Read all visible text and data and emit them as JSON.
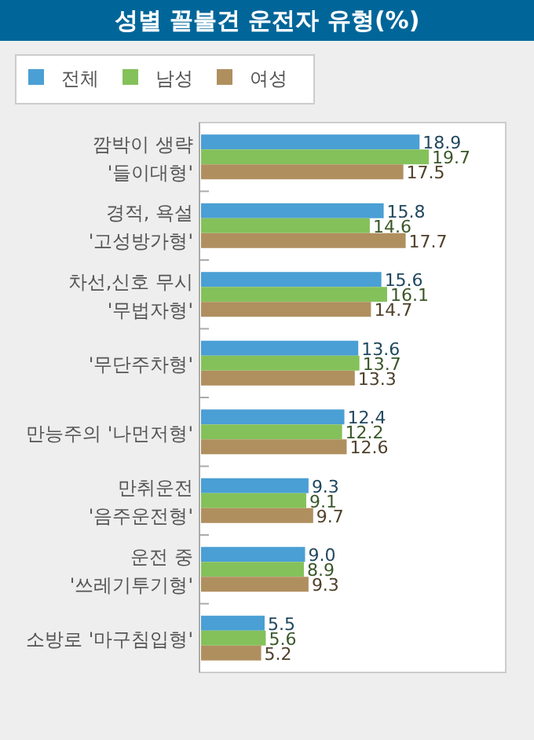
{
  "chart_data": {
    "type": "bar",
    "orientation": "horizontal",
    "title": "성별 꼴불견 운전자 유형(%)",
    "legend": "top left",
    "grid": false,
    "categories": [
      "깜박이 생략\n'들이대형'",
      "경적, 욕설\n'고성방가형'",
      "차선,신호 무시\n'무법자형'",
      "'무단주차형'",
      "만능주의 '나먼저형'",
      "만취운전\n'음주운전형'",
      "운전 중\n'쓰레기투기형'",
      "소방로 '마구침입형'"
    ],
    "series": [
      {
        "name": "전체",
        "color": "#4a9fd4",
        "values": [
          18.9,
          15.8,
          15.6,
          13.6,
          12.4,
          9.3,
          9.0,
          5.5
        ],
        "value_labels": [
          "18.9",
          "15.8",
          "15.6",
          "13.6",
          "12.4",
          "9.3",
          "9.0",
          "5.5"
        ]
      },
      {
        "name": "남성",
        "color": "#84c15a",
        "values": [
          19.7,
          14.6,
          16.1,
          13.7,
          12.2,
          9.1,
          8.9,
          5.6
        ],
        "value_labels": [
          "19.7",
          "14.6",
          "16.1",
          "13.7",
          "12.2",
          "9.1",
          "8.9",
          "5.6"
        ]
      },
      {
        "name": "여성",
        "color": "#b08f5f",
        "values": [
          17.5,
          17.7,
          14.7,
          13.3,
          12.6,
          9.7,
          9.3,
          5.2
        ],
        "value_labels": [
          "17.5",
          "17.7",
          "14.7",
          "13.3",
          "12.6",
          "9.7",
          "9.3",
          "5.2"
        ]
      }
    ]
  }
}
